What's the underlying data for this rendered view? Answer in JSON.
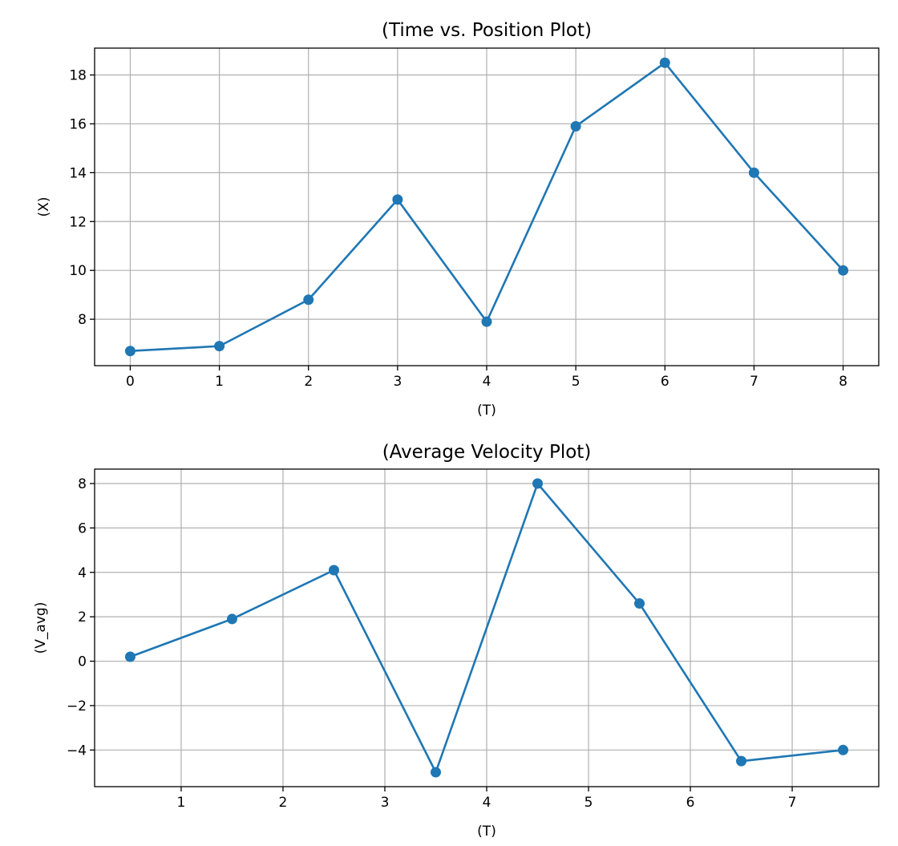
{
  "chart_data": [
    {
      "type": "line",
      "title": "(Time vs. Position Plot)",
      "xlabel": "(T)",
      "ylabel": "(X)",
      "x": [
        0,
        1,
        2,
        3,
        4,
        5,
        6,
        7,
        8
      ],
      "series": [
        {
          "values": [
            6.7,
            6.9,
            8.8,
            12.9,
            7.9,
            15.9,
            18.5,
            14.0,
            10.0
          ],
          "color": "#1f77b4"
        }
      ],
      "xlim": [
        -0.4,
        8.4
      ],
      "ylim": [
        6.1,
        19.1
      ],
      "xticks": [
        0,
        1,
        2,
        3,
        4,
        5,
        6,
        7,
        8
      ],
      "xtick_labels": [
        "0",
        "1",
        "2",
        "3",
        "4",
        "5",
        "6",
        "7",
        "8"
      ],
      "yticks": [
        8,
        10,
        12,
        14,
        16,
        18
      ],
      "ytick_labels": [
        "8",
        "10",
        "12",
        "14",
        "16",
        "18"
      ],
      "grid": true,
      "marker": "circle"
    },
    {
      "type": "line",
      "title": "(Average Velocity Plot)",
      "xlabel": "(T)",
      "ylabel": "(V_avg)",
      "x": [
        0.5,
        1.5,
        2.5,
        3.5,
        4.5,
        5.5,
        6.5,
        7.5
      ],
      "series": [
        {
          "values": [
            0.2,
            1.9,
            4.1,
            -5.0,
            8.0,
            2.6,
            -4.5,
            -4.0
          ],
          "color": "#1f77b4"
        }
      ],
      "xlim": [
        0.15,
        7.85
      ],
      "ylim": [
        -5.65,
        8.65
      ],
      "xticks": [
        1,
        2,
        3,
        4,
        5,
        6,
        7
      ],
      "xtick_labels": [
        "1",
        "2",
        "3",
        "4",
        "5",
        "6",
        "7"
      ],
      "yticks": [
        -4,
        -2,
        0,
        2,
        4,
        6,
        8
      ],
      "ytick_labels": [
        "−4",
        "−2",
        "0",
        "2",
        "4",
        "6",
        "8"
      ],
      "grid": true,
      "marker": "circle"
    }
  ]
}
